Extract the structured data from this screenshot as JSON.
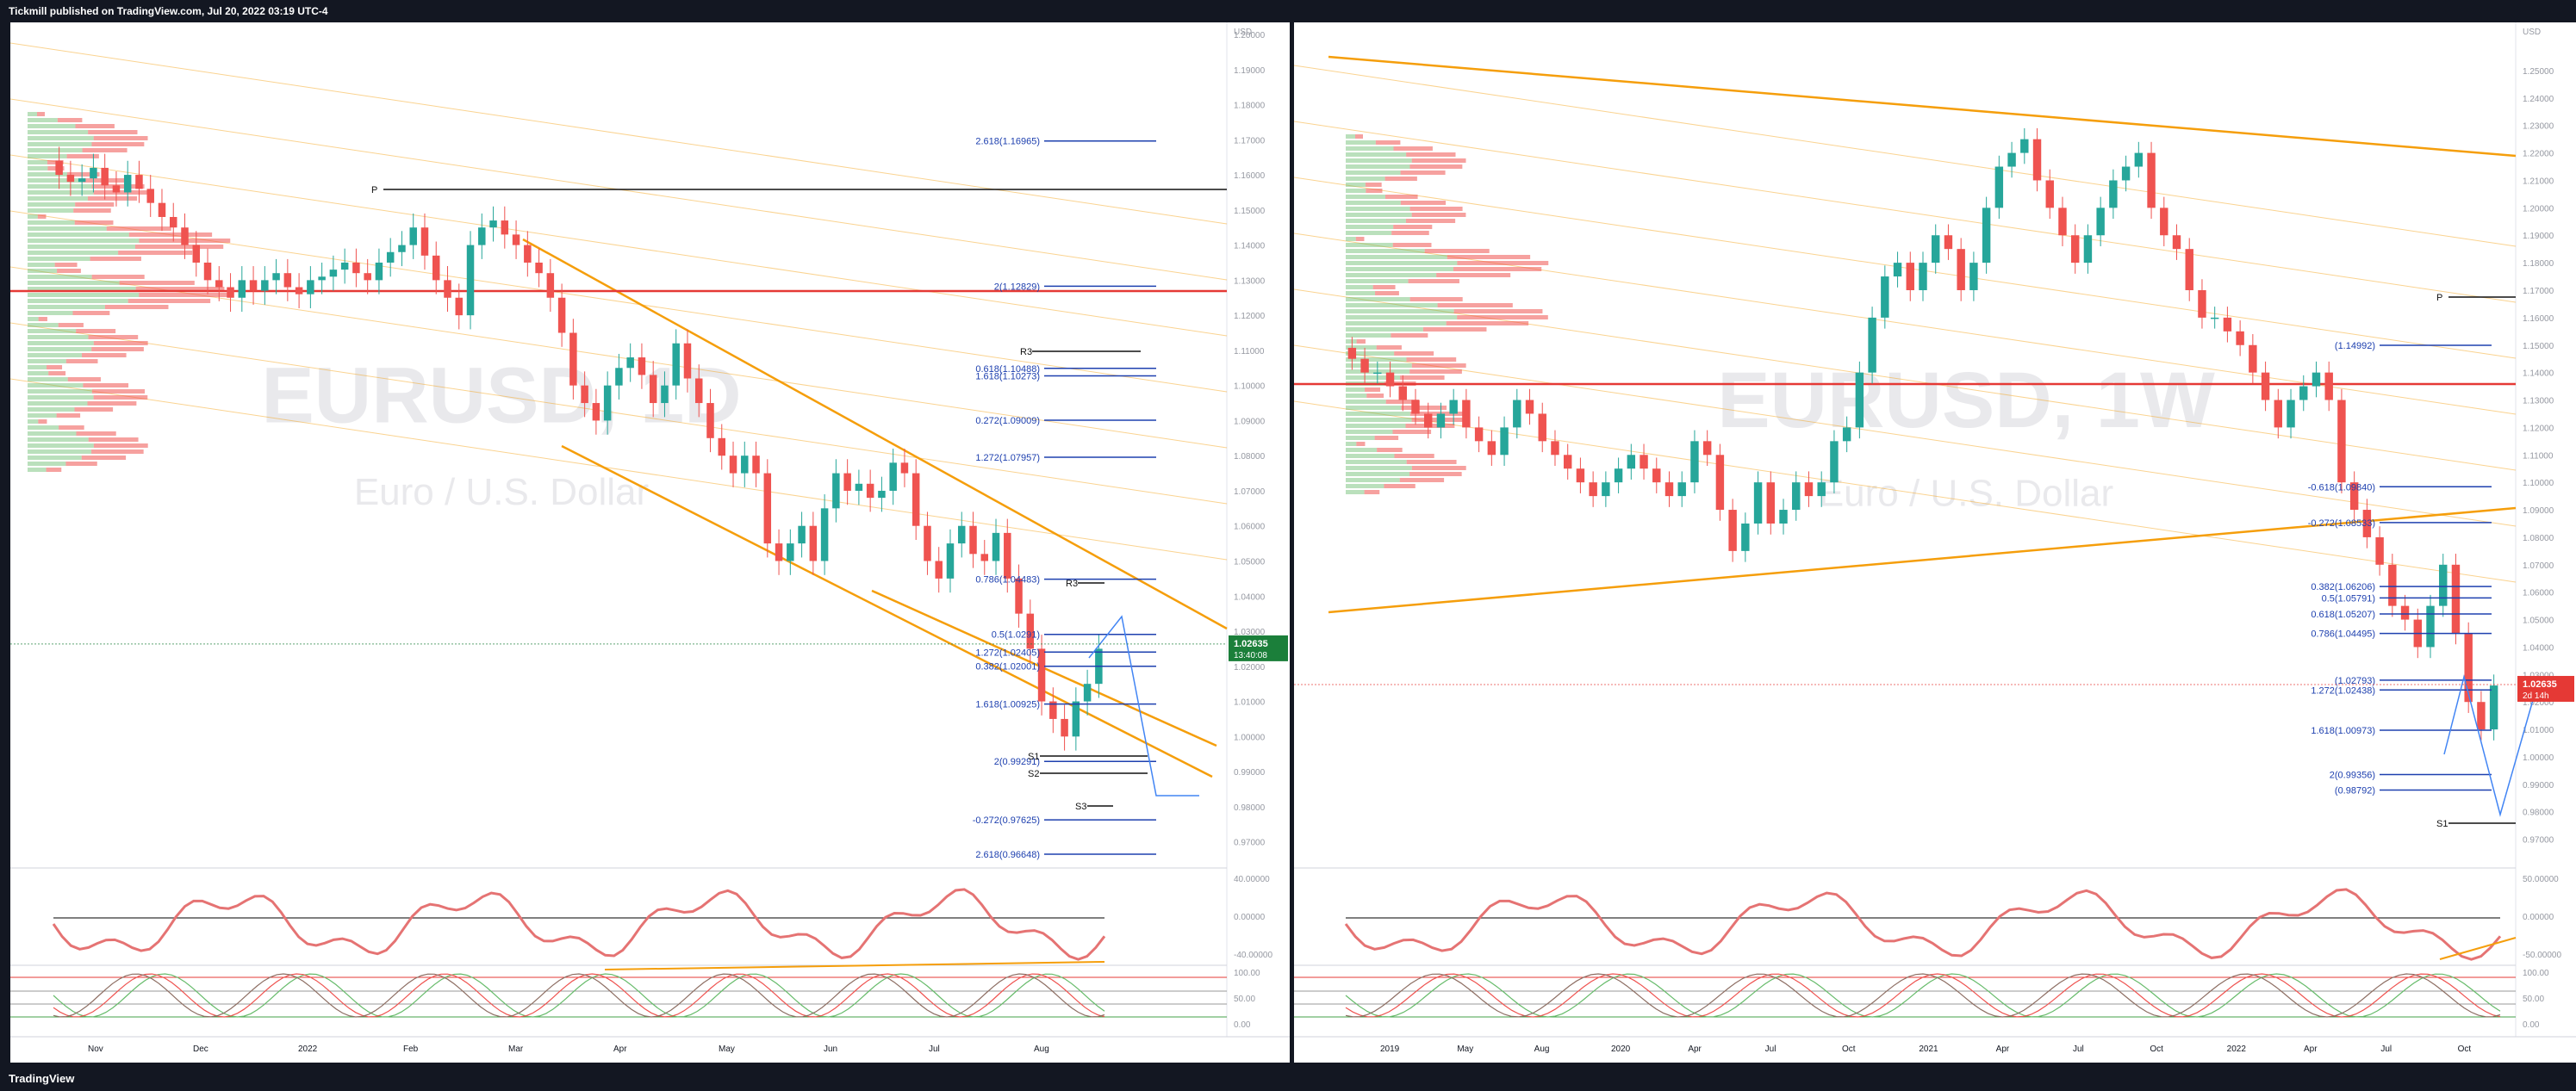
{
  "header": {
    "publisher": "Tickmill published on TradingView.com, Jul 20, 2022 03:19 UTC-4"
  },
  "footer": {
    "brand": "TradingView"
  },
  "colors": {
    "up": "#26a69a",
    "down": "#ef5350",
    "fib": "#1e40af",
    "channel": "#f59e0b",
    "pivot": "#111111",
    "rsi": "#e57373",
    "stoch_green": "#66bb6a"
  },
  "chart_data": [
    {
      "type": "line",
      "symbol": "EURUSD, 1D",
      "description": "Euro / U.S. Dollar",
      "currency": "USD",
      "last_price": "1.02635",
      "countdown": "13:40:08",
      "x_ticks": [
        "Nov",
        "Dec",
        "2022",
        "Feb",
        "Mar",
        "Apr",
        "May",
        "Jun",
        "Jul",
        "Aug"
      ],
      "y_ticks": [
        "1.20000",
        "1.19000",
        "1.18000",
        "1.17000",
        "1.16000",
        "1.15000",
        "1.14000",
        "1.13000",
        "1.12000",
        "1.11000",
        "1.10000",
        "1.09000",
        "1.08000",
        "1.07000",
        "1.06000",
        "1.05000",
        "1.04000",
        "1.03000",
        "1.02000",
        "1.01000",
        "1.00000",
        "0.99000",
        "0.98000",
        "0.97000"
      ],
      "ylim": [
        0.965,
        1.2
      ],
      "close": [
        1.16,
        1.158,
        1.159,
        1.162,
        1.157,
        1.155,
        1.16,
        1.156,
        1.152,
        1.148,
        1.145,
        1.14,
        1.135,
        1.13,
        1.128,
        1.125,
        1.13,
        1.127,
        1.13,
        1.132,
        1.128,
        1.126,
        1.13,
        1.131,
        1.133,
        1.135,
        1.132,
        1.13,
        1.135,
        1.138,
        1.14,
        1.145,
        1.137,
        1.13,
        1.125,
        1.12,
        1.14,
        1.145,
        1.147,
        1.143,
        1.14,
        1.135,
        1.132,
        1.125,
        1.115,
        1.1,
        1.095,
        1.09,
        1.1,
        1.105,
        1.108,
        1.103,
        1.095,
        1.1,
        1.112,
        1.102,
        1.095,
        1.085,
        1.08,
        1.075,
        1.08,
        1.075,
        1.055,
        1.05,
        1.055,
        1.06,
        1.05,
        1.065,
        1.075,
        1.07,
        1.072,
        1.068,
        1.07,
        1.078,
        1.075,
        1.06,
        1.05,
        1.045,
        1.055,
        1.06,
        1.052,
        1.05,
        1.058,
        1.045,
        1.035,
        1.025,
        1.01,
        1.005,
        1.0,
        1.01,
        1.015,
        1.025
      ],
      "fib_labels": [
        "2.618(1.16965)",
        "2(1.12829)",
        "1.618(1.10273)",
        "1.272(1.07957)",
        "0.618(1.10488)",
        "0.272(1.09009)",
        "1.272(1.02405)",
        "1.618(1.00925)",
        "2(0.99291)",
        "2.618(0.96648)",
        "-0.272(0.97625)",
        "0.786(1.04483)",
        "0.5(1.0291)",
        "0.382(1.02001)"
      ],
      "pivot_labels": [
        "P",
        "R3",
        "R3",
        "S1",
        "S2",
        "S3"
      ],
      "oscillator_ticks": [
        "40.00000",
        "0.00000",
        "-40.00000"
      ],
      "stoch_ticks": [
        "100.00",
        "50.00",
        "0.00"
      ]
    },
    {
      "type": "line",
      "symbol": "EURUSD, 1W",
      "description": "Euro / U.S. Dollar",
      "currency": "USD",
      "last_price": "1.02635",
      "countdown": "2d 14h",
      "x_ticks": [
        "2019",
        "May",
        "Aug",
        "2020",
        "Apr",
        "Jul",
        "Oct",
        "2021",
        "Apr",
        "Jul",
        "Oct",
        "2022",
        "Apr",
        "Jul",
        "Oct"
      ],
      "y_ticks": [
        "1.25000",
        "1.24000",
        "1.23000",
        "1.22000",
        "1.21000",
        "1.20000",
        "1.19000",
        "1.18000",
        "1.17000",
        "1.16000",
        "1.15000",
        "1.14000",
        "1.13000",
        "1.12000",
        "1.11000",
        "1.10000",
        "1.09000",
        "1.08000",
        "1.07000",
        "1.06000",
        "1.05000",
        "1.04000",
        "1.03000",
        "1.02000",
        "1.01000",
        "1.00000",
        "0.99000",
        "0.98000",
        "0.97000"
      ],
      "ylim": [
        0.968,
        1.255
      ],
      "close": [
        1.145,
        1.14,
        1.14,
        1.135,
        1.13,
        1.125,
        1.12,
        1.125,
        1.13,
        1.12,
        1.115,
        1.11,
        1.12,
        1.13,
        1.125,
        1.115,
        1.11,
        1.105,
        1.1,
        1.095,
        1.1,
        1.105,
        1.11,
        1.105,
        1.1,
        1.095,
        1.1,
        1.115,
        1.11,
        1.09,
        1.075,
        1.085,
        1.1,
        1.085,
        1.09,
        1.1,
        1.095,
        1.1,
        1.115,
        1.12,
        1.14,
        1.16,
        1.175,
        1.18,
        1.17,
        1.18,
        1.19,
        1.185,
        1.17,
        1.18,
        1.2,
        1.215,
        1.22,
        1.225,
        1.21,
        1.2,
        1.19,
        1.18,
        1.19,
        1.2,
        1.21,
        1.215,
        1.22,
        1.2,
        1.19,
        1.185,
        1.17,
        1.16,
        1.16,
        1.155,
        1.15,
        1.14,
        1.13,
        1.12,
        1.13,
        1.135,
        1.14,
        1.13,
        1.1,
        1.09,
        1.08,
        1.07,
        1.055,
        1.05,
        1.04,
        1.055,
        1.07,
        1.045,
        1.02,
        1.01,
        1.026
      ],
      "fib_labels": [
        "(1.14992)",
        "-0.618(1.09840)",
        "-0.272(1.08533)",
        "0.382(1.06206)",
        "0.5(1.05791)",
        "0.618(1.05207)",
        "0.786(1.04495)",
        "(1.02793)",
        "1.272(1.02438)",
        "1.618(1.00973)",
        "2(0.99356)",
        "(0.98792)"
      ],
      "pivot_labels": [
        "P",
        "S1"
      ],
      "oscillator_ticks": [
        "50.00000",
        "0.00000",
        "-50.00000"
      ],
      "stoch_ticks": [
        "100.00",
        "50.00",
        "0.00"
      ]
    }
  ]
}
